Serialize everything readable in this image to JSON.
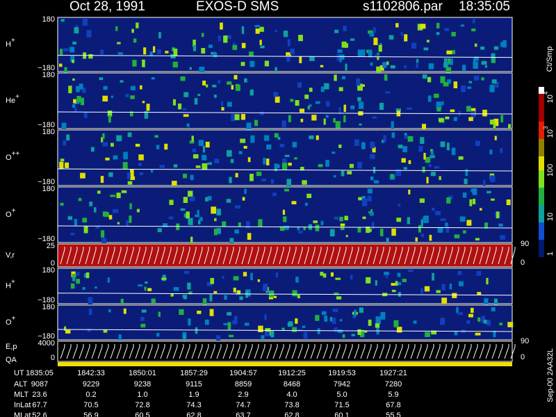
{
  "header": {
    "date": "Oct 28, 1991",
    "instrument": "EXOS-D SMS",
    "file": "s1102806.par",
    "time": "18:35:05"
  },
  "panels": [
    {
      "label": {
        "base": "H",
        "sup": "+"
      },
      "top": "180",
      "bottom": "−180"
    },
    {
      "label": {
        "base": "He",
        "sup": "+"
      },
      "top": "180",
      "bottom": "−180"
    },
    {
      "label": {
        "base": "O",
        "sup": "++"
      },
      "top": "180",
      "bottom": "−180"
    },
    {
      "label": {
        "base": "O",
        "sup": "+"
      },
      "top": "180",
      "bottom": "−180"
    },
    {
      "label": {
        "base": "V,r"
      },
      "top": "25",
      "bottom": "0",
      "right_top": "90",
      "right_bottom": "0"
    },
    {
      "label": {
        "base": "H",
        "sup": "+"
      },
      "top": "180",
      "bottom": "−180"
    },
    {
      "label": {
        "base": "O",
        "sup": "+"
      },
      "top": "180",
      "bottom": "−180"
    },
    {
      "label": {
        "base": "E,p"
      },
      "label2": "QA",
      "top": "4000",
      "bottom": "0",
      "right_top": "90",
      "right_bottom": "0"
    }
  ],
  "colorbar": {
    "unit": "Ct/Smp",
    "labels": [
      {
        "base": "10",
        "sup": "4"
      },
      {
        "base": "10",
        "sup": "3"
      },
      {
        "base": "100"
      },
      {
        "base": "10"
      },
      {
        "base": "1"
      }
    ]
  },
  "footer_code": "Sep-00 2AA32L",
  "table": {
    "rows": [
      [
        "UT",
        "1835:05",
        "1842:33",
        "1850:01",
        "1857:29",
        "1904:57",
        "1912:25",
        "1919:53",
        "1927:21"
      ],
      [
        "ALT",
        "9087",
        "9229",
        "9238",
        "9115",
        "8859",
        "8468",
        "7942",
        "7280"
      ],
      [
        "MLT",
        "23.6",
        "0.2",
        "1.0",
        "1.9",
        "2.9",
        "4.0",
        "5.0",
        "5.9"
      ],
      [
        "InLat",
        "67.7",
        "70.5",
        "72.8",
        "74.3",
        "74.7",
        "73.8",
        "71.5",
        "67.8"
      ],
      [
        "MLat",
        "52.6",
        "56.9",
        "60.5",
        "62.8",
        "63.7",
        "62.8",
        "60.1",
        "55.5"
      ]
    ]
  }
}
